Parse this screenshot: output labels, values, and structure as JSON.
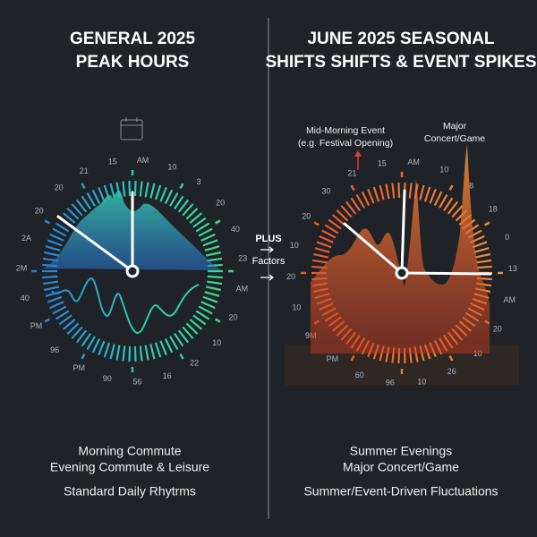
{
  "left": {
    "title": [
      "GENERAL 2025",
      "PEAK HOURS"
    ],
    "dial_labels": [
      "15",
      "AM",
      "10",
      "3",
      "20",
      "40",
      "23",
      "AM",
      "20",
      "10",
      "22",
      "16",
      "56",
      "90",
      "PM",
      "96",
      "PM",
      "40",
      "2M",
      "2A",
      "20",
      "20",
      "21"
    ],
    "captions": [
      "Morning Commute",
      "Evening Commute & Leisure"
    ],
    "summary": "Standard Daily Rhytrms"
  },
  "center": {
    "top": "PLUS",
    "bottom": "Factors"
  },
  "right": {
    "title": [
      "JUNE 2025 SEASONAL",
      "SHIFTS SHIFTS & EVENT SPIKES"
    ],
    "annotations": {
      "event": [
        "Mid-Morning Event",
        "(e.g. Festival Opening)"
      ],
      "concert": [
        "Major",
        "Concert/Game"
      ]
    },
    "dial_labels": [
      "15",
      "AM",
      "10",
      "8",
      "18",
      "0",
      "13",
      "AM",
      "20",
      "10",
      "26",
      "10",
      "96",
      "60",
      "PM",
      "9M",
      "10",
      "20",
      "10",
      "20",
      "30",
      "21"
    ],
    "captions": [
      "Summer Evenings",
      "Major Concert/Game"
    ],
    "summary": "Summer/Event-Driven Fluctuations"
  }
}
